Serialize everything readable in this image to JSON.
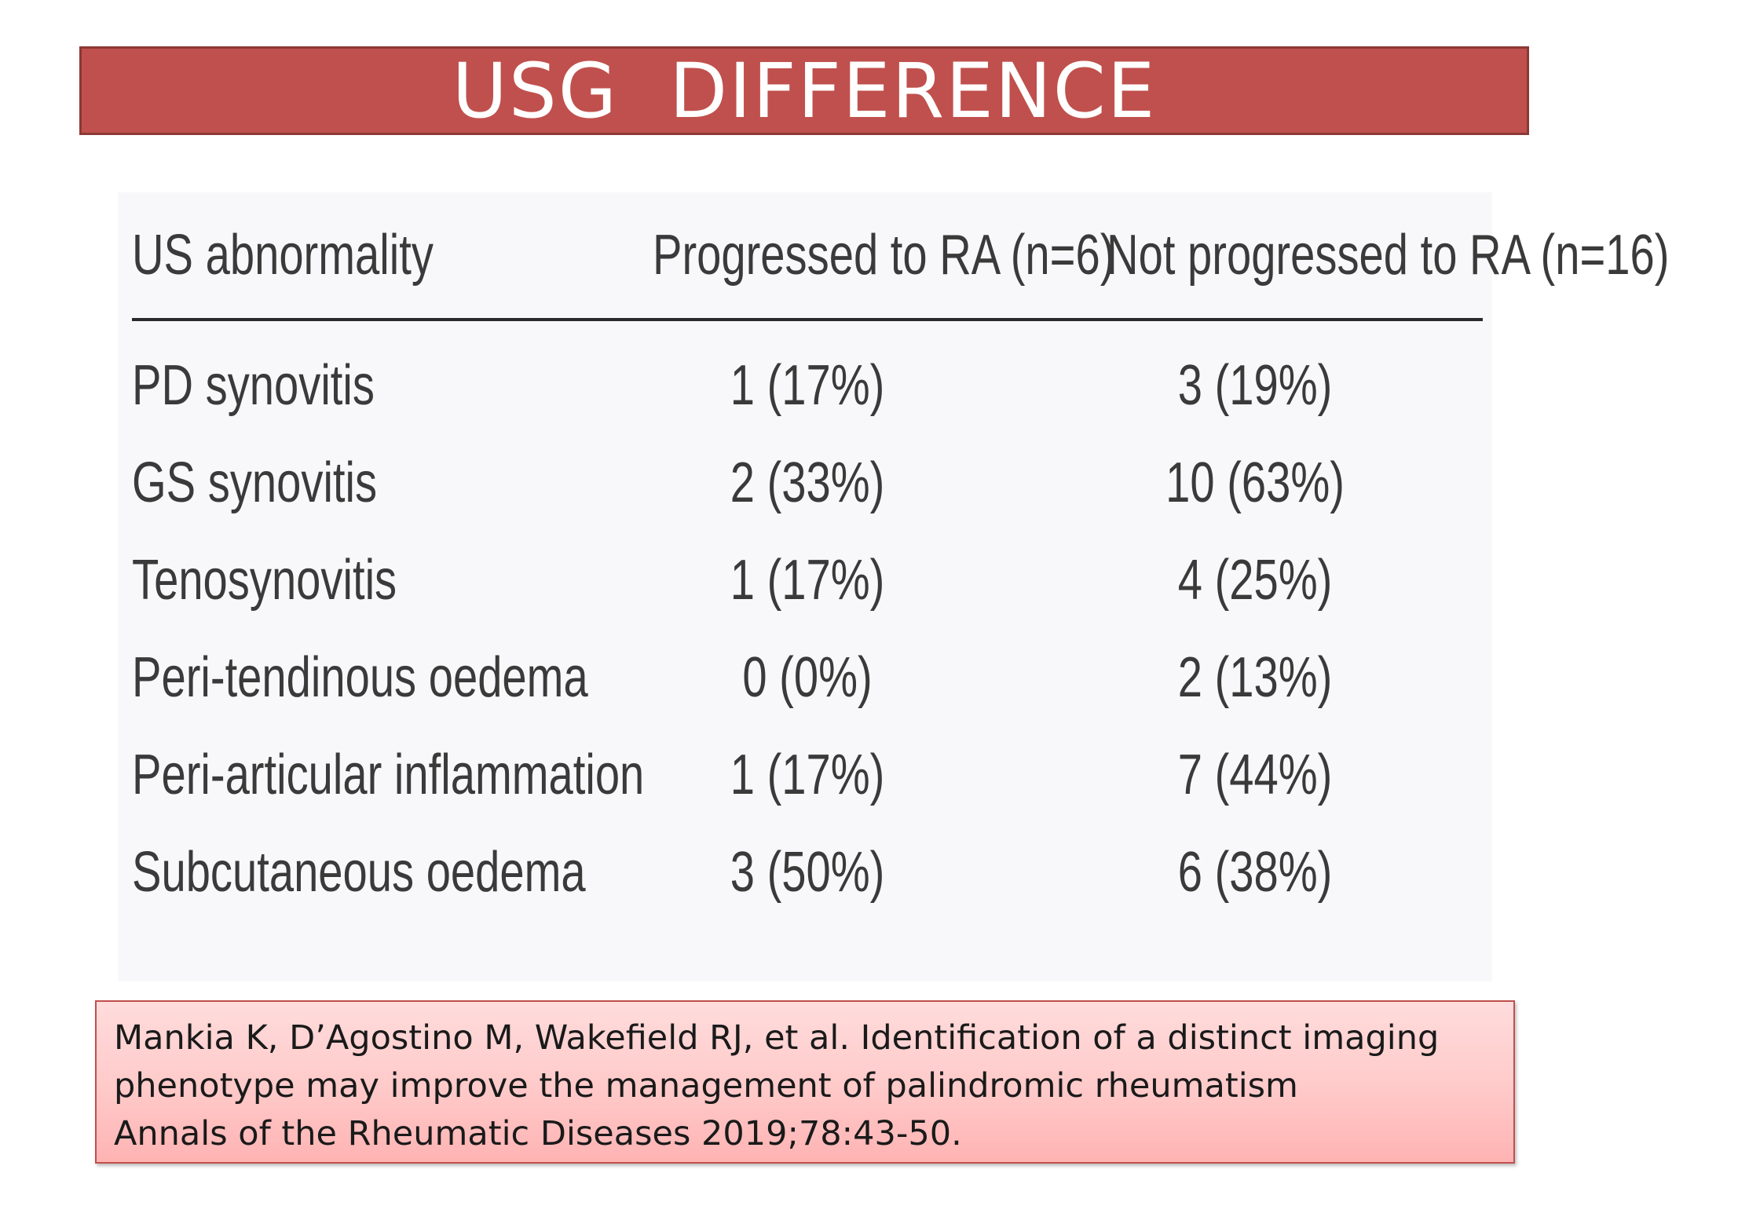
{
  "title": "USG  DIFFERENCE",
  "table": {
    "headers": [
      "US abnormality",
      "Progressed to RA (n=6)",
      "Not progressed to RA (n=16)"
    ],
    "rows": [
      {
        "label": "PD synovitis",
        "progressed": "1 (17%)",
        "not_progressed": "3 (19%)"
      },
      {
        "label": "GS synovitis",
        "progressed": "2 (33%)",
        "not_progressed": "10 (63%)"
      },
      {
        "label": "Tenosynovitis",
        "progressed": "1 (17%)",
        "not_progressed": "4 (25%)"
      },
      {
        "label": "Peri-tendinous oedema",
        "progressed": "0 (0%)",
        "not_progressed": "2 (13%)"
      },
      {
        "label": "Peri-articular inflammation",
        "progressed": "1 (17%)",
        "not_progressed": "7 (44%)"
      },
      {
        "label": "Subcutaneous oedema",
        "progressed": "3 (50%)",
        "not_progressed": "6 (38%)"
      }
    ]
  },
  "reference": {
    "lines": [
      "Mankia K, D’Agostino M, Wakefield RJ, et al. Identification of a distinct imaging",
      "phenotype may improve the management of palindromic rheumatism",
      "Annals of the Rheumatic Diseases 2019;78:43-50."
    ]
  },
  "colors": {
    "title_bar": "#c0504d",
    "title_text": "#ffffff",
    "reference_fill_top": "#ffdcdc",
    "reference_fill_bottom": "#ffb3b3"
  }
}
